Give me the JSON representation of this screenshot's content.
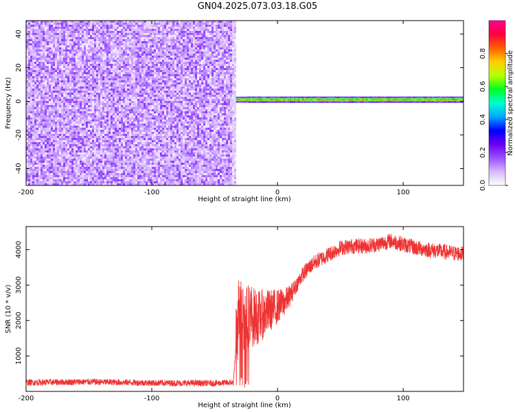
{
  "title": "GN04.2025.073.03.18.G05",
  "chart_data": [
    {
      "type": "heatmap",
      "xlabel": "Height of straight line (km)",
      "ylabel": "Frequency (Hz)",
      "xlim": [
        -200,
        148
      ],
      "ylim": [
        -50,
        48
      ],
      "xticks": [
        -200,
        -100,
        0,
        100
      ],
      "xtick_labels": [
        "-200",
        "-100",
        "0",
        "100"
      ],
      "yticks": [
        -40,
        -20,
        0,
        20,
        40
      ],
      "ytick_labels": [
        "-40",
        "-20",
        "0",
        "20",
        "40"
      ],
      "colorbar": {
        "label": "Normalized spectral amplitude",
        "range": [
          0,
          1
        ],
        "ticks": [
          0.0,
          0.2,
          0.4,
          0.6,
          0.8
        ],
        "tick_labels": [
          "0.0",
          "0.2",
          "0.4",
          "0.6",
          "0.8"
        ],
        "colormap": [
          "#ffffff",
          "#d8b8ff",
          "#9a50ff",
          "#6a00ee",
          "#0000ff",
          "#00a8ff",
          "#00ffd0",
          "#00ff20",
          "#b8ff00",
          "#ffd000",
          "#ff6000",
          "#ff0040",
          "#ff0090"
        ]
      },
      "regions": [
        {
          "x": [
            -200,
            -33
          ],
          "y": [
            -50,
            48
          ],
          "level": 0.15,
          "pattern": "noise"
        },
        {
          "x": [
            -33,
            148
          ],
          "y": [
            0,
            2
          ],
          "level": 0.9,
          "pattern": "carrier"
        }
      ]
    },
    {
      "type": "line",
      "xlabel": "Height of straight line (km)",
      "ylabel": "SNR (10 * v/v)",
      "xlim": [
        -200,
        148
      ],
      "ylim": [
        0,
        4650
      ],
      "xticks": [
        -200,
        -100,
        0,
        100
      ],
      "xtick_labels": [
        "-200",
        "-100",
        "0",
        "100"
      ],
      "yticks": [
        1000,
        2000,
        3000,
        4000
      ],
      "ytick_labels": [
        "1000",
        "2000",
        "3000",
        "4000"
      ],
      "color": "#ee3333",
      "series": [
        {
          "x": [
            -200,
            -150,
            -100,
            -50,
            -35,
            -32,
            -30,
            -28,
            -25,
            -22,
            -20,
            -15,
            -10,
            -5,
            0,
            5,
            10,
            15,
            20,
            25,
            30,
            40,
            50,
            60,
            70,
            80,
            90,
            100,
            110,
            120,
            130,
            140,
            148
          ],
          "values": [
            250,
            270,
            240,
            230,
            250,
            1800,
            2500,
            2200,
            2000,
            2300,
            2100,
            2100,
            2200,
            2300,
            2400,
            2500,
            2700,
            3000,
            3300,
            3500,
            3650,
            3850,
            4050,
            4100,
            4100,
            4150,
            4250,
            4150,
            4050,
            4000,
            3950,
            3900,
            3880
          ]
        }
      ]
    }
  ]
}
